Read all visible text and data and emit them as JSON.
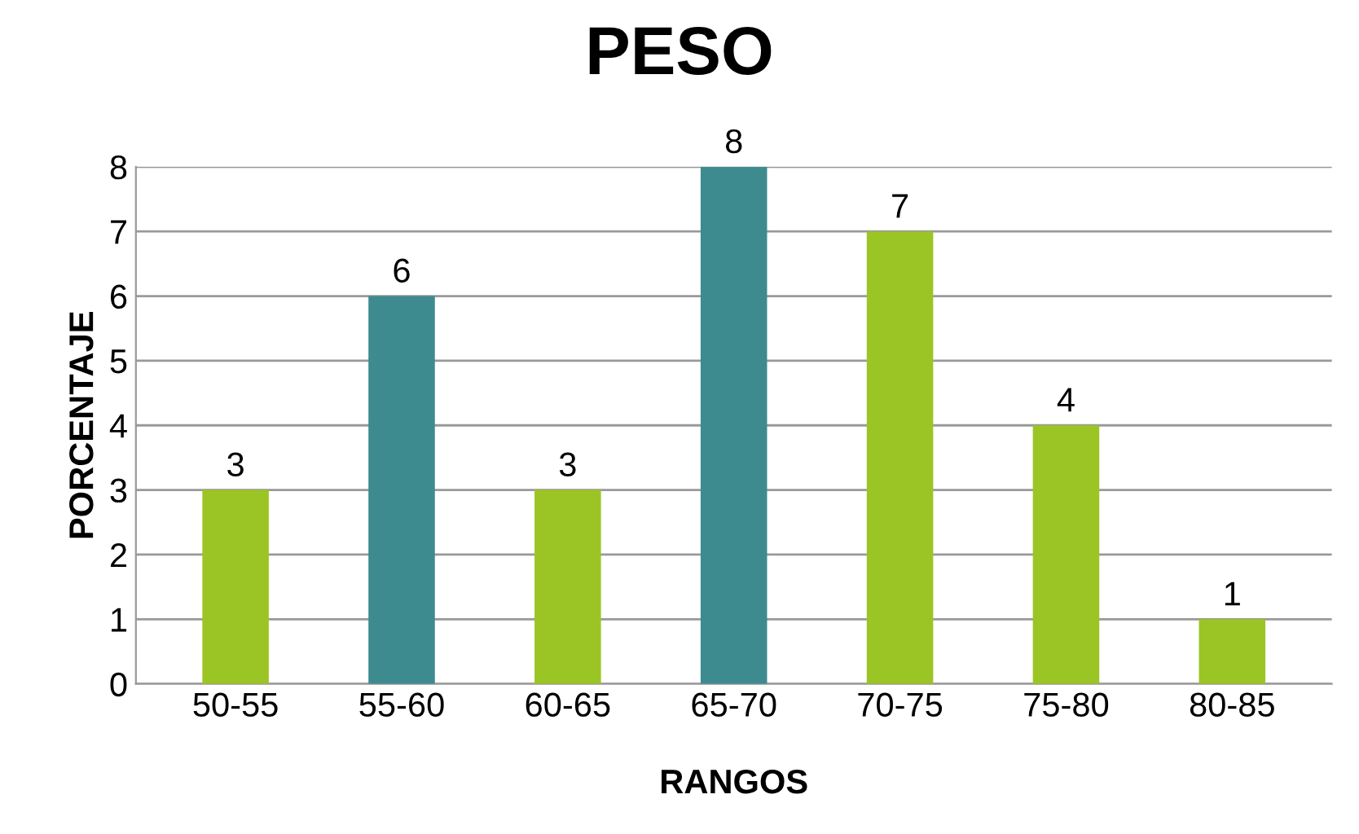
{
  "chart_data": {
    "type": "bar",
    "title": "PESO",
    "xlabel": "RANGOS",
    "ylabel": "PORCENTAJE",
    "categories": [
      "50-55",
      "55-60",
      "60-65",
      "65-70",
      "70-75",
      "75-80",
      "80-85"
    ],
    "values": [
      3,
      6,
      3,
      8,
      7,
      4,
      1
    ],
    "colors": [
      "#9bc524",
      "#3d8a8f",
      "#9bc524",
      "#3d8a8f",
      "#9bc524",
      "#9bc524",
      "#9bc524"
    ],
    "ylim": [
      0,
      8
    ],
    "yticks": [
      0,
      1,
      2,
      3,
      4,
      5,
      6,
      7,
      8
    ],
    "grid": "y",
    "data_labels": true,
    "legend": false
  }
}
